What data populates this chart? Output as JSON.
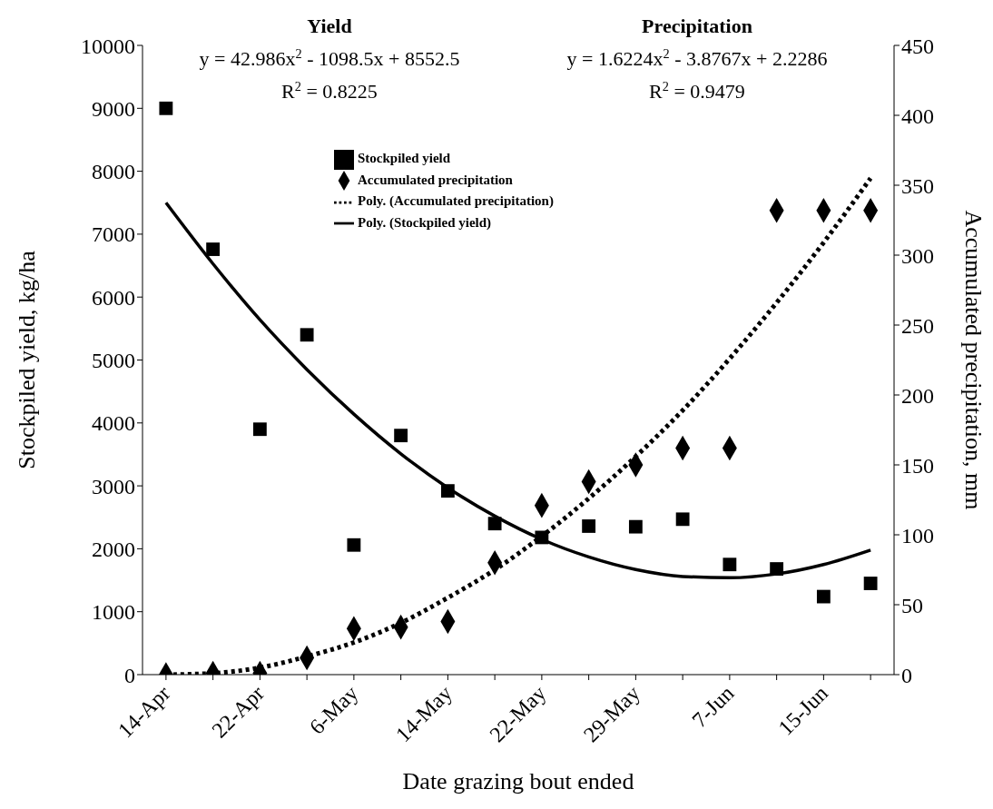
{
  "chart_data": {
    "type": "scatter",
    "xlabel": "Date grazing bout ended",
    "ylabel": "Stockpiled yield, kg/ha",
    "y2label": "Accumulated precipitation, mm",
    "categories": [
      "14-Apr",
      null,
      "22-Apr",
      null,
      "6-May",
      null,
      "14-May",
      null,
      "22-May",
      null,
      "29-May",
      null,
      "7-Jun",
      null,
      "15-Jun",
      null
    ],
    "ylim": [
      0,
      10000
    ],
    "yticks": [
      0,
      1000,
      2000,
      3000,
      4000,
      5000,
      6000,
      7000,
      8000,
      9000,
      10000
    ],
    "y2lim": [
      0,
      450
    ],
    "y2ticks": [
      0,
      50,
      100,
      150,
      200,
      250,
      300,
      350,
      400,
      450
    ],
    "grid": false,
    "legend": "top",
    "annotations": [
      "Yield",
      "y = 42.986x$^{2}$ - 1098.5x + 8552.5",
      "R$^{2}$ = 0.8225",
      "Precipitation",
      "y = 1.6224x$^{2}$ - 3.8767x + 2.2286",
      "R$^{2}$ = 0.9479"
    ],
    "series": [
      {
        "name": "Stockpiled yield",
        "marker": "square",
        "color": "#000000",
        "values": [
          9000,
          6760,
          3900,
          5400,
          2060,
          3800,
          2920,
          2400,
          2180,
          2360,
          2350,
          2470,
          1750,
          1680,
          1240,
          1450
        ]
      },
      {
        "name": "Accumulated precipitation",
        "marker": "diamond",
        "axis": "y2",
        "color": "#000000",
        "values": [
          0,
          1,
          1,
          12,
          33,
          34,
          38,
          80,
          121,
          138,
          150,
          162,
          162,
          332,
          332,
          332
        ]
      },
      {
        "name": "Poly. (Accumulated precipitation)",
        "type": "line",
        "marker": "none",
        "line_style": "dotted",
        "axis": "y2",
        "color": "#000000",
        "values": [
          0,
          1,
          5,
          13,
          23,
          37,
          55,
          75,
          99,
          126,
          156,
          189,
          226,
          266,
          309,
          355
        ]
      },
      {
        "name": "Poly. (Stockpiled yield)",
        "type": "line",
        "marker": "none",
        "line_style": "solid",
        "color": "#000000",
        "values": [
          7500,
          6530,
          5640,
          4850,
          4140,
          3510,
          2970,
          2520,
          2150,
          1870,
          1670,
          1560,
          1540,
          1600,
          1750,
          1980
        ]
      }
    ]
  }
}
